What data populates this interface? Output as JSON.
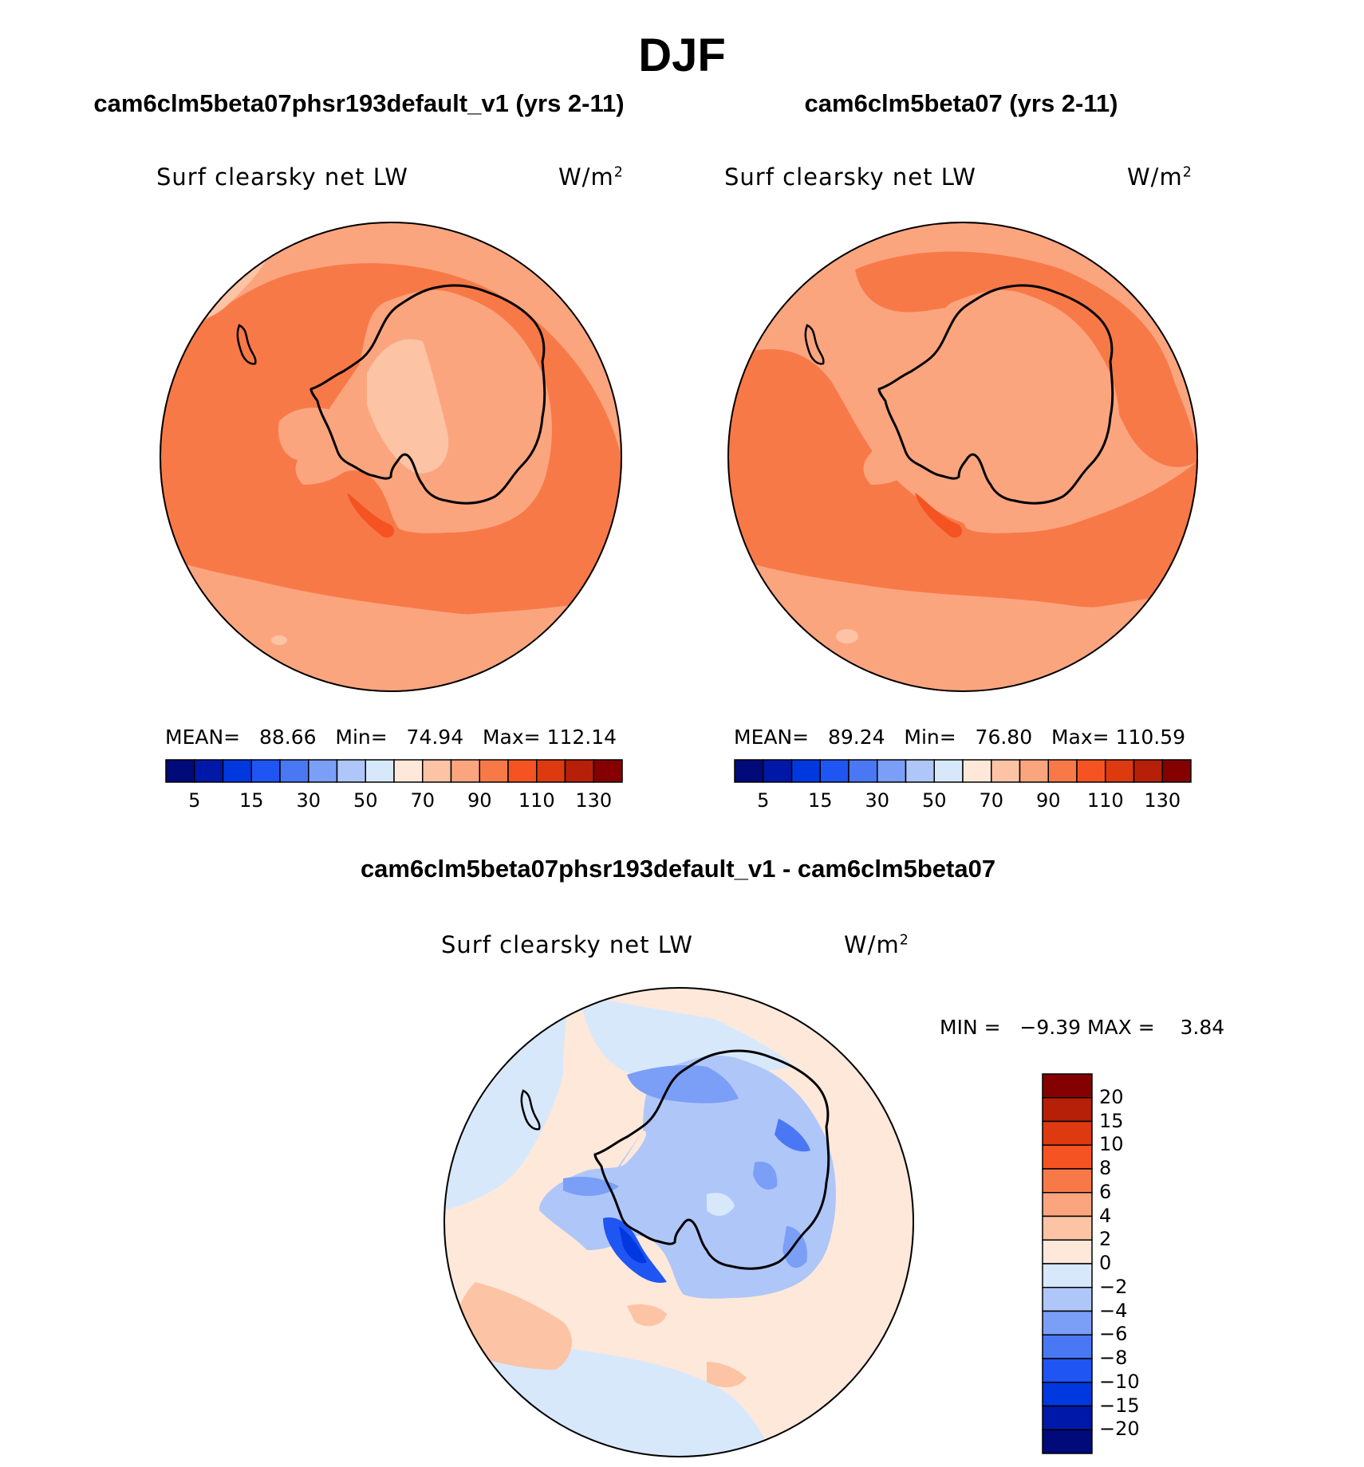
{
  "figure": {
    "title": "DJF",
    "colors": {
      "abs_scale": [
        "#000a78",
        "#0018a8",
        "#0038e0",
        "#1f55f2",
        "#4a78f5",
        "#7b9ef7",
        "#afc6f9",
        "#d8e8fb",
        "#fde8da",
        "#fcc3a5",
        "#fba57f",
        "#f87948",
        "#f55422",
        "#dd3a10",
        "#b62008",
        "#850000"
      ],
      "diff_scale": [
        "#000a78",
        "#0018a8",
        "#0038e0",
        "#1f55f2",
        "#4a78f5",
        "#7b9ef7",
        "#afc6f9",
        "#d8e8fb",
        "#fde8da",
        "#fcc3a5",
        "#fba57f",
        "#f87948",
        "#f55422",
        "#dd3a10",
        "#b62008",
        "#850000"
      ]
    }
  },
  "panels": [
    {
      "id": "left",
      "title": "cam6clm5beta07phsr193default_v1 (yrs 2-11)",
      "variable": "Surf clearsky net LW",
      "units_base": "W/m",
      "units_exp": "2",
      "stats": {
        "mean_label": "MEAN=",
        "mean": "88.66",
        "min_label": "Min=",
        "min": "74.94",
        "max_label": "Max=",
        "max": "112.14"
      },
      "colorbar_ticks": [
        "5",
        "15",
        "30",
        "50",
        "70",
        "90",
        "110",
        "130"
      ]
    },
    {
      "id": "right",
      "title": "cam6clm5beta07 (yrs 2-11)",
      "variable": "Surf clearsky net LW",
      "units_base": "W/m",
      "units_exp": "2",
      "stats": {
        "mean_label": "MEAN=",
        "mean": "89.24",
        "min_label": "Min=",
        "min": "76.80",
        "max_label": "Max=",
        "max": "110.59"
      },
      "colorbar_ticks": [
        "5",
        "15",
        "30",
        "50",
        "70",
        "90",
        "110",
        "130"
      ]
    }
  ],
  "difference": {
    "title": "cam6clm5beta07phsr193default_v1 - cam6clm5beta07",
    "variable": "Surf clearsky net LW",
    "units_base": "W/m",
    "units_exp": "2",
    "min_label": "MIN =",
    "min": "−9.39",
    "max_label": "MAX =",
    "max": "3.84",
    "colorbar_ticks": [
      "20",
      "15",
      "10",
      "8",
      "6",
      "4",
      "2",
      "0",
      "−2",
      "−4",
      "−6",
      "−8",
      "−10",
      "−15",
      "−20"
    ]
  }
}
